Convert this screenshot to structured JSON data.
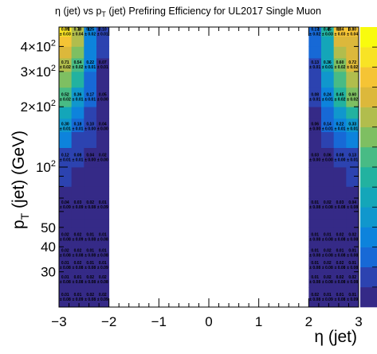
{
  "chart_data": {
    "type": "heatmap",
    "title": "η (jet) vs p_T (jet) Prefiring Efficiency for UL2017 Single Muon",
    "title_parts": {
      "pre": "η (jet) vs p",
      "sub": "T",
      "post": " (jet) Prefiring Efficiency for UL2017 Single Muon"
    },
    "xlabel": "η (jet)",
    "ylabel": "p_T (jet)  (GeV)",
    "ylabel_parts": {
      "main": "p",
      "sub": "T",
      "post": " (jet)  (GeV)"
    },
    "x_scale": "linear",
    "y_scale": "log",
    "xlim": [
      -3,
      3
    ],
    "ylim": [
      20,
      500
    ],
    "x_ticks": [
      -3,
      -2,
      -1,
      0,
      1,
      2,
      3
    ],
    "x_tick_labels": [
      "−3",
      "−2",
      "−1",
      "0",
      "1",
      "2",
      "3"
    ],
    "y_ticks": [
      {
        "value": 30,
        "label": "30"
      },
      {
        "value": 40,
        "label": "40"
      },
      {
        "value": 50,
        "label": "50"
      },
      {
        "value": 100,
        "label": "10",
        "exp": "2"
      },
      {
        "value": 200,
        "label": "2×10",
        "exp": "2"
      },
      {
        "value": 300,
        "label": "3×10",
        "exp": "2"
      },
      {
        "value": 400,
        "label": "4×10",
        "exp": "2"
      }
    ],
    "x_edges_left": [
      -3.0,
      -2.75,
      -2.5,
      -2.25,
      -2.0
    ],
    "x_edges_right": [
      2.0,
      2.25,
      2.5,
      2.75,
      3.0
    ],
    "y_edges": [
      20,
      22.5,
      25,
      27.5,
      30,
      32.5,
      35,
      37.5,
      40,
      45,
      50,
      55,
      60,
      65,
      70,
      80,
      90,
      100,
      125,
      150,
      175,
      200,
      250,
      300,
      350,
      400,
      450,
      500
    ],
    "labeled_rows": [
      {
        "y": 22.5,
        "left": [
          "0.01",
          "0.01",
          "0.02",
          "0.02"
        ],
        "left_err": [
          "0.08",
          "0.09",
          "0.08",
          "0.09"
        ],
        "right": [
          "0.02",
          "0.01",
          "0.01",
          "0.01"
        ],
        "right_err": [
          "0.08",
          "0.09",
          "0.08",
          "0.09"
        ]
      },
      {
        "y": 27.5,
        "left": [
          "0.01",
          "0.01",
          "0.02",
          "0.02"
        ],
        "left_err": [
          "0.08",
          "0.08",
          "0.08",
          "0.08"
        ],
        "right": [
          "0.01",
          "0.02",
          "0.02",
          "0.02"
        ],
        "right_err": [
          "0.08",
          "0.08",
          "0.08",
          "0.08"
        ]
      },
      {
        "y": 32.5,
        "left": [
          "0.01",
          "0.02",
          "0.01",
          "0.01"
        ],
        "left_err": [
          "0.08",
          "0.08",
          "0.08",
          "0.09"
        ],
        "right": [
          "0.01",
          "0.02",
          "0.02",
          "0.01"
        ],
        "right_err": [
          "0.08",
          "0.08",
          "0.08",
          "0.08"
        ]
      },
      {
        "y": 37.5,
        "left": [
          "0.02",
          "0.02",
          "0.01",
          "0.01"
        ],
        "left_err": [
          "0.08",
          "0.08",
          "0.08",
          "0.08"
        ],
        "right": [
          "0.01",
          "0.02",
          "0.01",
          "0.01"
        ],
        "right_err": [
          "0.08",
          "0.08",
          "0.08",
          "0.08"
        ]
      },
      {
        "y": 45,
        "left": [
          "0.02",
          "0.02",
          "0.01",
          "0.01"
        ],
        "left_err": [
          "0.08",
          "0.09",
          "0.08",
          "0.08"
        ],
        "right": [
          "0.01",
          "0.01",
          "0.02",
          "0.02"
        ],
        "right_err": [
          "0.08",
          "0.08",
          "0.08",
          "0.08"
        ]
      },
      {
        "y": 65,
        "left": [
          "0.04",
          "0.03",
          "0.02",
          "0.01"
        ],
        "left_err": [
          "0.09",
          "0.09",
          "0.08",
          "0.09"
        ],
        "right": [
          "0.01",
          "0.02",
          "0.03",
          "0.04"
        ],
        "right_err": [
          "0.08",
          "0.08",
          "0.08",
          "0.08"
        ]
      },
      {
        "y": 112,
        "left": [
          "0.12",
          "0.08",
          "0.04",
          "0.02"
        ],
        "left_err": [
          "0.01",
          "0.01",
          "0.00",
          "0.00"
        ],
        "right": [
          "0.03",
          "0.06",
          "0.08",
          "0.13"
        ],
        "right_err": [
          "0.00",
          "0.00",
          "0.00",
          "0.01"
        ]
      },
      {
        "y": 160,
        "left": [
          "0.30",
          "0.18",
          "0.10",
          "0.04"
        ],
        "left_err": [
          "0.01",
          "0.01",
          "0.00",
          "0.00"
        ],
        "right": [
          "0.06",
          "0.14",
          "0.22",
          "0.33"
        ],
        "right_err": [
          "0.00",
          "0.01",
          "0.01",
          "0.01"
        ]
      },
      {
        "y": 225,
        "left": [
          "0.52",
          "0.36",
          "0.17",
          "0.05"
        ],
        "left_err": [
          "0.02",
          "0.01",
          "0.01",
          "0.00"
        ],
        "right": [
          "0.08",
          "0.24",
          "0.45",
          "0.60"
        ],
        "right_err": [
          "0.01",
          "0.01",
          "0.02",
          "0.02"
        ]
      },
      {
        "y": 325,
        "left": [
          "0.71",
          "0.54",
          "0.22",
          "0.07"
        ],
        "left_err": [
          "0.02",
          "0.02",
          "0.01",
          "0.01"
        ],
        "right": [
          "0.13",
          "0.36",
          "0.60",
          "0.72"
        ],
        "right_err": [
          "0.01",
          "0.01",
          "0.02",
          "0.02"
        ]
      },
      {
        "y": 475,
        "left": [
          "0.89",
          "0.70",
          "0.25",
          "0.10"
        ],
        "left_err": [
          "0.03",
          "0.04",
          "0.02",
          "0.01"
        ],
        "right": [
          "0.17",
          "0.45",
          "0.84",
          "0.80"
        ],
        "right_err": [
          "0.02",
          "0.03",
          "0.03",
          "0.04"
        ]
      }
    ],
    "colors": {
      "palette": [
        "#352a87",
        "#2c43b0",
        "#1769d6",
        "#0d83dc",
        "#1097cd",
        "#14a6b9",
        "#22b2a0",
        "#48bb85",
        "#7ebf62",
        "#b1bd4d",
        "#dcb83b",
        "#f5c435",
        "#f8e325",
        "#f9fb0e"
      ]
    }
  }
}
